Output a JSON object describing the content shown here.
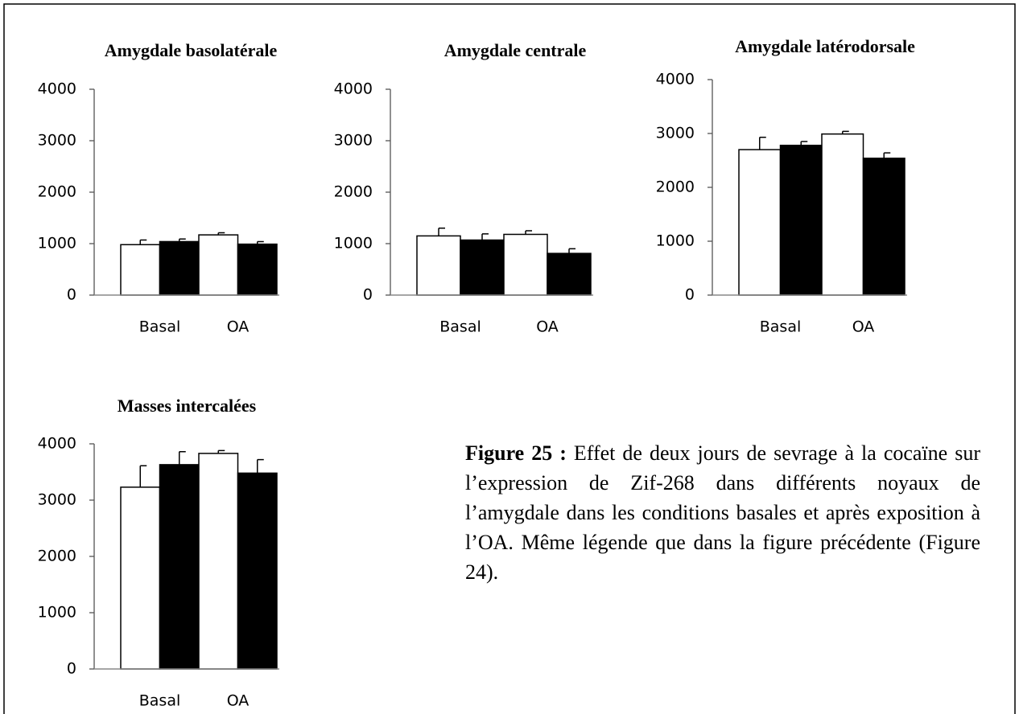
{
  "chart_data": [
    {
      "type": "bar",
      "title": "Amygdale basolatérale",
      "categories": [
        "Basal",
        "OA"
      ],
      "series": [
        {
          "color": "#ffffff",
          "values": [
            980,
            1170
          ],
          "errors": [
            90,
            40
          ]
        },
        {
          "color": "#000000",
          "values": [
            1040,
            990
          ],
          "errors": [
            50,
            50
          ]
        }
      ],
      "ylim": [
        0,
        4000
      ],
      "yticks": [
        0,
        1000,
        2000,
        3000,
        4000
      ]
    },
    {
      "type": "bar",
      "title": "Amygdale centrale",
      "categories": [
        "Basal",
        "OA"
      ],
      "series": [
        {
          "color": "#ffffff",
          "values": [
            1150,
            1180
          ],
          "errors": [
            150,
            70
          ]
        },
        {
          "color": "#000000",
          "values": [
            1070,
            810
          ],
          "errors": [
            120,
            90
          ]
        }
      ],
      "ylim": [
        0,
        4000
      ],
      "yticks": [
        0,
        1000,
        2000,
        3000,
        4000
      ]
    },
    {
      "type": "bar",
      "title": "Amygdale latérodorsale",
      "categories": [
        "Basal",
        "OA"
      ],
      "series": [
        {
          "color": "#ffffff",
          "values": [
            2700,
            2990
          ],
          "errors": [
            230,
            50
          ]
        },
        {
          "color": "#000000",
          "values": [
            2780,
            2540
          ],
          "errors": [
            70,
            100
          ]
        }
      ],
      "ylim": [
        0,
        4000
      ],
      "yticks": [
        0,
        1000,
        2000,
        3000,
        4000
      ]
    },
    {
      "type": "bar",
      "title": "Masses intercalées",
      "categories": [
        "Basal",
        "OA"
      ],
      "series": [
        {
          "color": "#ffffff",
          "values": [
            3230,
            3830
          ],
          "errors": [
            380,
            50
          ]
        },
        {
          "color": "#000000",
          "values": [
            3630,
            3480
          ],
          "errors": [
            230,
            240
          ]
        }
      ],
      "ylim": [
        0,
        4000
      ],
      "yticks": [
        0,
        1000,
        2000,
        3000,
        4000
      ]
    }
  ],
  "caption": {
    "label": "Figure 25 :",
    "text": "Effet de deux jours de sevrage à la cocaïne sur l’expression de Zif-268 dans différents noyaux de l’amygdale dans les conditions basales et après exposition à l’OA. Même légende que dans la figure précédente (Figure 24)."
  }
}
